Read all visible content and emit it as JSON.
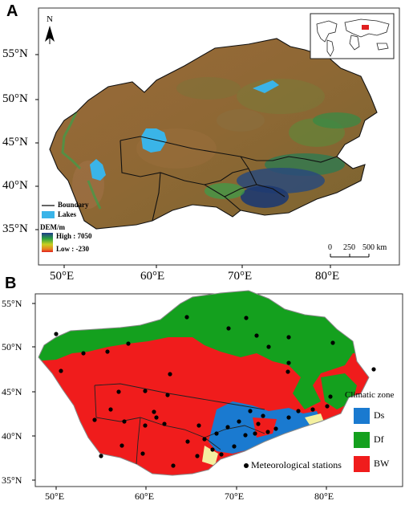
{
  "panel_a": {
    "letter": "A",
    "north_label": "N",
    "lat_ticks": [
      "55°N",
      "50°N",
      "45°N",
      "40°N",
      "35°N"
    ],
    "lon_ticks": [
      "50°E",
      "60°E",
      "70°E",
      "80°E"
    ],
    "legend": {
      "boundary": "Boundary",
      "lakes": "Lakes",
      "dem_title": "DEM/m",
      "dem_high": "High : 7050",
      "dem_low": "Low : -230"
    },
    "scale": {
      "zero": "0",
      "mid": "250",
      "end": "500 km"
    },
    "colors": {
      "dem_high": "#1e3a6e",
      "dem_mid": "#5aa83c",
      "dem_low": "#8a6e3a",
      "lake": "#3ab4e8"
    }
  },
  "panel_b": {
    "letter": "B",
    "lat_ticks": [
      "55°N",
      "50°N",
      "45°N",
      "40°N",
      "35°N"
    ],
    "lon_ticks": [
      "50°E",
      "60°E",
      "70°E",
      "80°E"
    ],
    "legend": {
      "title": "Climatic zone",
      "ds": "Ds",
      "df": "Df",
      "bw": "BW",
      "stations": "Meteorological stations"
    },
    "colors": {
      "ds": "#1a7ad0",
      "df": "#14a01e",
      "bw": "#f01c1c"
    }
  }
}
